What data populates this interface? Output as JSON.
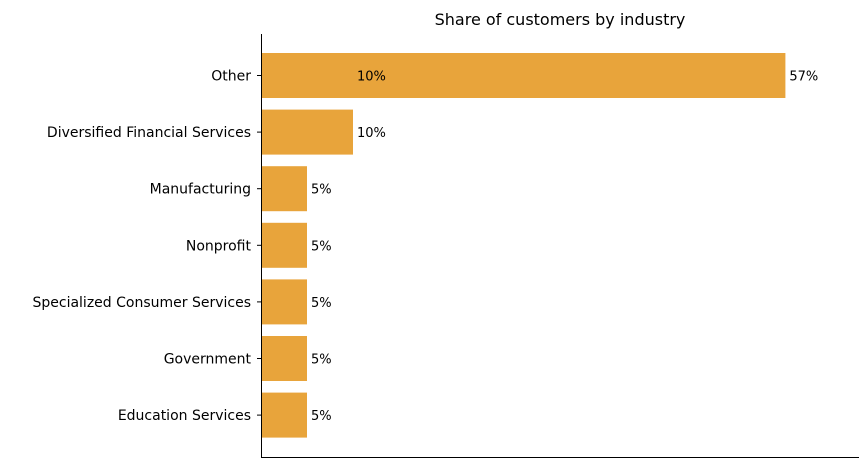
{
  "chart_data": {
    "type": "bar",
    "orientation": "horizontal",
    "title": "Share of customers by industry",
    "xlabel": "",
    "ylabel": "",
    "categories": [
      "Other",
      "Diversified Financial Services",
      "Manufacturing",
      "Nonprofit",
      "Specialized Consumer Services",
      "Government",
      "Education Services"
    ],
    "values": [
      57,
      10,
      5,
      5,
      5,
      5,
      5
    ],
    "data_labels": [
      "57%",
      "10%",
      "5%",
      "5%",
      "5%",
      "5%",
      "5%"
    ],
    "extra_annotation": "10%",
    "unit": "%",
    "xlim": [
      0,
      65
    ],
    "grid": false,
    "bar_color": "#e8a43b",
    "x_ticks_visible": false
  }
}
